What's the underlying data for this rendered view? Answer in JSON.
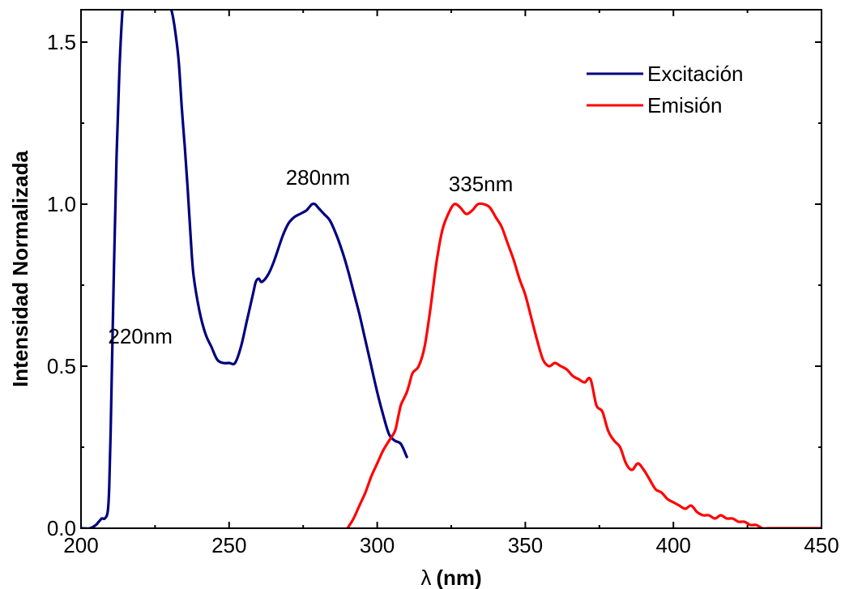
{
  "chart_data": {
    "type": "line",
    "title": "",
    "xlabel_symbol": "λ",
    "xlabel_unit": "(nm)",
    "ylabel": "Intensidad Normalizada",
    "xlim": [
      200,
      450
    ],
    "ylim": [
      0,
      1.6
    ],
    "xticks": [
      200,
      250,
      300,
      350,
      400,
      450
    ],
    "xtick_labels": [
      "200",
      "250",
      "300",
      "350",
      "400",
      "450"
    ],
    "yticks": [
      0.0,
      0.5,
      1.0,
      1.5
    ],
    "ytick_labels": [
      "0.0",
      "0.5",
      "1.0",
      "1.5"
    ],
    "grid": false,
    "legend_position": "top-right",
    "series": [
      {
        "name": "Excitación",
        "color": "#00007f",
        "x": [
          200,
          203,
          205,
          206,
          207,
          208,
          209,
          209.5,
          210,
          211,
          212,
          213,
          214,
          215,
          216,
          218,
          220,
          222,
          225,
          228,
          230,
          231,
          232,
          233,
          234,
          235,
          236,
          237,
          238,
          240,
          242,
          244,
          246,
          248,
          250,
          252,
          254,
          256,
          258,
          259,
          260,
          261,
          263,
          265,
          268,
          270,
          272,
          274,
          276,
          277,
          278,
          279,
          280,
          281,
          282,
          284,
          286,
          288,
          290,
          292,
          294,
          296,
          298,
          300,
          302,
          304,
          306,
          308,
          310
        ],
        "y": [
          0.0,
          0.0,
          0.01,
          0.02,
          0.03,
          0.03,
          0.05,
          0.12,
          0.3,
          0.75,
          1.15,
          1.42,
          1.6,
          1.7,
          1.75,
          1.8,
          1.83,
          1.83,
          1.8,
          1.72,
          1.62,
          1.58,
          1.52,
          1.44,
          1.3,
          1.18,
          1.05,
          0.9,
          0.78,
          0.67,
          0.6,
          0.56,
          0.52,
          0.51,
          0.51,
          0.51,
          0.56,
          0.64,
          0.72,
          0.76,
          0.77,
          0.76,
          0.78,
          0.82,
          0.9,
          0.94,
          0.96,
          0.97,
          0.98,
          0.99,
          1.0,
          1.0,
          0.99,
          0.98,
          0.97,
          0.95,
          0.91,
          0.86,
          0.8,
          0.73,
          0.66,
          0.58,
          0.5,
          0.42,
          0.35,
          0.29,
          0.27,
          0.26,
          0.22
        ]
      },
      {
        "name": "Emisión",
        "color": "#ff0000",
        "x": [
          290,
          292,
          294,
          296,
          298,
          300,
          302,
          304,
          306,
          307,
          308,
          309,
          310,
          311,
          312,
          314,
          316,
          318,
          320,
          322,
          324,
          326,
          328,
          330,
          332,
          334,
          336,
          338,
          340,
          342,
          344,
          346,
          348,
          350,
          352,
          354,
          356,
          358,
          360,
          362,
          364,
          366,
          368,
          370,
          372,
          374,
          376,
          378,
          380,
          382,
          384,
          386,
          388,
          390,
          392,
          394,
          396,
          398,
          400,
          402,
          404,
          406,
          408,
          410,
          412,
          414,
          416,
          418,
          420,
          422,
          424,
          426,
          428,
          430,
          432,
          435,
          440,
          445,
          450
        ],
        "y": [
          0.0,
          0.03,
          0.07,
          0.11,
          0.16,
          0.2,
          0.24,
          0.27,
          0.3,
          0.34,
          0.38,
          0.4,
          0.42,
          0.45,
          0.48,
          0.5,
          0.56,
          0.68,
          0.82,
          0.92,
          0.97,
          1.0,
          0.99,
          0.97,
          0.98,
          1.0,
          1.0,
          0.99,
          0.96,
          0.93,
          0.88,
          0.83,
          0.77,
          0.72,
          0.65,
          0.58,
          0.52,
          0.5,
          0.51,
          0.5,
          0.49,
          0.47,
          0.46,
          0.45,
          0.46,
          0.38,
          0.36,
          0.3,
          0.27,
          0.25,
          0.2,
          0.18,
          0.2,
          0.18,
          0.15,
          0.12,
          0.11,
          0.09,
          0.08,
          0.07,
          0.06,
          0.07,
          0.05,
          0.04,
          0.04,
          0.03,
          0.04,
          0.03,
          0.03,
          0.02,
          0.02,
          0.01,
          0.01,
          0.0,
          0.0,
          0.0,
          0.0,
          0.0,
          0.0
        ]
      }
    ],
    "annotations": [
      {
        "text": "220nm",
        "x": 220,
        "y": 0.57
      },
      {
        "text": "280nm",
        "x": 280,
        "y": 1.06
      },
      {
        "text": "335nm",
        "x": 335,
        "y": 1.04
      }
    ]
  }
}
